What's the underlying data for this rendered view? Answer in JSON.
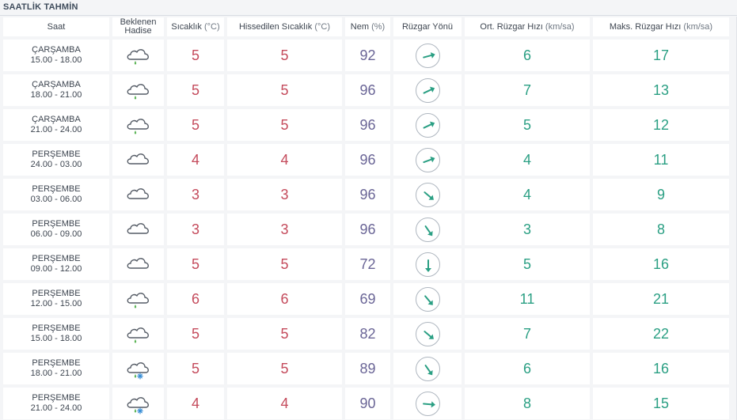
{
  "section_title": "SAATLİK TAHMİN",
  "headers": {
    "time": "Saat",
    "event_line1": "Beklenen",
    "event_line2": "Hadise",
    "temp": "Sıcaklık",
    "temp_unit": "(°C)",
    "feels": "Hissedilen Sıcaklık",
    "feels_unit": "(°C)",
    "humidity": "Nem",
    "humidity_unit": "(%)",
    "wind_dir": "Rüzgar Yönü",
    "wind_avg": "Ort. Rüzgar Hızı",
    "wind_avg_unit": "(km/sa)",
    "wind_max": "Maks. Rüzgar Hızı",
    "wind_max_unit": "(km/sa)"
  },
  "colors": {
    "temperature": "#c44a5b",
    "humidity": "#6a6596",
    "wind": "#2a9f83"
  },
  "rows": [
    {
      "day": "ÇARŞAMBA",
      "hours": "15.00 - 18.00",
      "icon": "cloud-rain-icon",
      "temp": "5",
      "feels": "5",
      "humidity": "92",
      "wind_dir_deg": 75,
      "wind_avg": "6",
      "wind_max": "17"
    },
    {
      "day": "ÇARŞAMBA",
      "hours": "18.00 - 21.00",
      "icon": "cloud-rain-icon",
      "temp": "5",
      "feels": "5",
      "humidity": "96",
      "wind_dir_deg": 65,
      "wind_avg": "7",
      "wind_max": "13"
    },
    {
      "day": "ÇARŞAMBA",
      "hours": "21.00 - 24.00",
      "icon": "cloud-rain-icon",
      "temp": "5",
      "feels": "5",
      "humidity": "96",
      "wind_dir_deg": 65,
      "wind_avg": "5",
      "wind_max": "12"
    },
    {
      "day": "PERŞEMBE",
      "hours": "24.00 - 03.00",
      "icon": "cloud-icon",
      "temp": "4",
      "feels": "4",
      "humidity": "96",
      "wind_dir_deg": 70,
      "wind_avg": "4",
      "wind_max": "11"
    },
    {
      "day": "PERŞEMBE",
      "hours": "03.00 - 06.00",
      "icon": "cloud-icon",
      "temp": "3",
      "feels": "3",
      "humidity": "96",
      "wind_dir_deg": 130,
      "wind_avg": "4",
      "wind_max": "9"
    },
    {
      "day": "PERŞEMBE",
      "hours": "06.00 - 09.00",
      "icon": "cloud-icon",
      "temp": "3",
      "feels": "3",
      "humidity": "96",
      "wind_dir_deg": 145,
      "wind_avg": "3",
      "wind_max": "8"
    },
    {
      "day": "PERŞEMBE",
      "hours": "09.00 - 12.00",
      "icon": "cloud-icon",
      "temp": "5",
      "feels": "5",
      "humidity": "72",
      "wind_dir_deg": 180,
      "wind_avg": "5",
      "wind_max": "16"
    },
    {
      "day": "PERŞEMBE",
      "hours": "12.00 - 15.00",
      "icon": "cloud-rain-icon",
      "temp": "6",
      "feels": "6",
      "humidity": "69",
      "wind_dir_deg": 140,
      "wind_avg": "11",
      "wind_max": "21"
    },
    {
      "day": "PERŞEMBE",
      "hours": "15.00 - 18.00",
      "icon": "cloud-rain-icon",
      "temp": "5",
      "feels": "5",
      "humidity": "82",
      "wind_dir_deg": 130,
      "wind_avg": "7",
      "wind_max": "22"
    },
    {
      "day": "PERŞEMBE",
      "hours": "18.00 - 21.00",
      "icon": "cloud-sleet-icon",
      "temp": "5",
      "feels": "5",
      "humidity": "89",
      "wind_dir_deg": 145,
      "wind_avg": "6",
      "wind_max": "16"
    },
    {
      "day": "PERŞEMBE",
      "hours": "21.00 - 24.00",
      "icon": "cloud-sleet-icon",
      "temp": "4",
      "feels": "4",
      "humidity": "90",
      "wind_dir_deg": 95,
      "wind_avg": "8",
      "wind_max": "15"
    }
  ]
}
